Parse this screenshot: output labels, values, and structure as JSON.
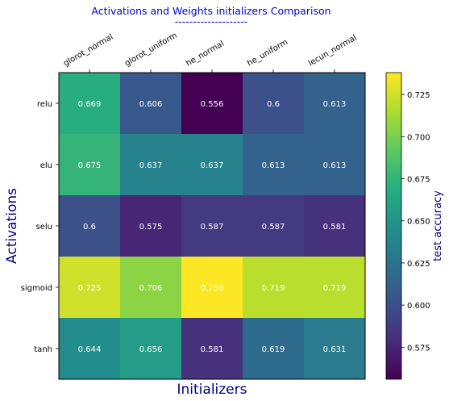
{
  "chart_data": {
    "type": "heatmap",
    "title": "Activations and Weights initializers Comparison",
    "subtitle": "--------------------",
    "xlabel": "Initializers",
    "ylabel": "Activations",
    "colorbar_label": "test accuracy",
    "x_categories": [
      "glorot_normal",
      "glorot_uniform",
      "he_normal",
      "he_uniform",
      "lecun_normal"
    ],
    "y_categories": [
      "relu",
      "elu",
      "selu",
      "sigmoid",
      "tanh"
    ],
    "values": [
      [
        0.669,
        0.606,
        0.556,
        0.6,
        0.613
      ],
      [
        0.675,
        0.637,
        0.637,
        0.613,
        0.613
      ],
      [
        0.6,
        0.575,
        0.587,
        0.587,
        0.581
      ],
      [
        0.725,
        0.706,
        0.738,
        0.719,
        0.719
      ],
      [
        0.644,
        0.656,
        0.581,
        0.619,
        0.631
      ]
    ],
    "cell_labels": [
      [
        "0.669",
        "0.606",
        "0.556",
        "0.6",
        "0.613"
      ],
      [
        "0.675",
        "0.637",
        "0.637",
        "0.613",
        "0.613"
      ],
      [
        "0.6",
        "0.575",
        "0.587",
        "0.587",
        "0.581"
      ],
      [
        "0.725",
        "0.706",
        "0.738",
        "0.719",
        "0.719"
      ],
      [
        "0.644",
        "0.656",
        "0.581",
        "0.619",
        "0.631"
      ]
    ],
    "color_range": [
      0.556,
      0.738
    ],
    "colorbar_ticks": [
      "0.575",
      "0.600",
      "0.625",
      "0.650",
      "0.675",
      "0.700",
      "0.725"
    ],
    "colormap": "viridis",
    "x_ticks_position": "top",
    "grid": false
  },
  "colors": {
    "title": "#0000cc",
    "axis_label": "#000080",
    "cell_text": "#ffffff"
  }
}
